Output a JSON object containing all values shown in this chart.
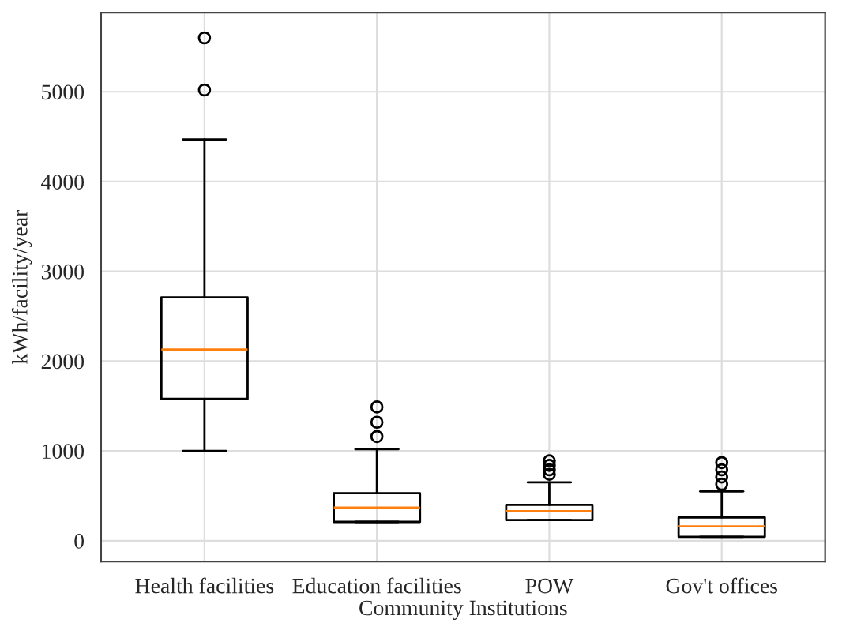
{
  "chart_data": {
    "type": "box",
    "xlabel": "Community Institutions",
    "ylabel": "kWh/facility/year",
    "categories": [
      "Health facilities",
      "Education facilities",
      "POW",
      "Gov't offices"
    ],
    "boxes": [
      {
        "low": 1000,
        "q1": 1580,
        "median": 2130,
        "q3": 2710,
        "high": 4470,
        "outliers": [
          5020,
          5600
        ]
      },
      {
        "low": 210,
        "q1": 210,
        "median": 370,
        "q3": 530,
        "high": 1020,
        "outliers": [
          1160,
          1320,
          1490
        ]
      },
      {
        "low": 230,
        "q1": 230,
        "median": 330,
        "q3": 400,
        "high": 650,
        "outliers": [
          740,
          790,
          840,
          890
        ]
      },
      {
        "low": 45,
        "q1": 45,
        "median": 160,
        "q3": 260,
        "high": 550,
        "outliers": [
          630,
          710,
          790,
          870
        ]
      }
    ],
    "ylim": [
      -230,
      5880
    ],
    "yticks": [
      0,
      1000,
      2000,
      3000,
      4000,
      5000
    ],
    "grid": true
  }
}
